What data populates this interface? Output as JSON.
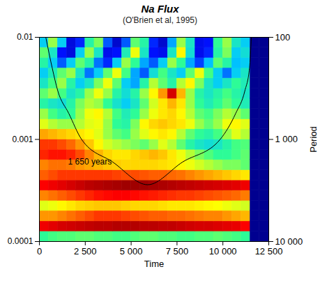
{
  "chart_data": {
    "type": "heatmap",
    "title": "Na Flux",
    "subtitle": "(O'Brien et al, 1995)",
    "x_label": "Time",
    "y2_label": "Period",
    "log": "y",
    "xlim": [
      0,
      12500
    ],
    "xticks": [
      0,
      {
        "value": 2500,
        "label": "2 500"
      },
      {
        "value": 5000,
        "label": "5 000"
      },
      {
        "value": 7500,
        "label": "7 500"
      },
      {
        "value": 10000,
        "label": "10 000"
      },
      {
        "value": 12500,
        "label": "12 500"
      }
    ],
    "ylim": [
      0.0001,
      0.01
    ],
    "yticks": [
      0.0001,
      0.001,
      0.01
    ],
    "y2lim": [
      10000,
      100
    ],
    "y2ticks": [
      100,
      {
        "value": 1000,
        "label": "1 000"
      },
      {
        "value": 10000,
        "label": "10 000"
      }
    ],
    "x_bins": [
      0,
      500,
      1000,
      1500,
      2000,
      2500,
      3000,
      3500,
      4000,
      4500,
      5000,
      5500,
      6000,
      6500,
      7000,
      7500,
      8000,
      8500,
      9000,
      9500,
      10000,
      10500,
      11000,
      11500,
      12000,
      12500
    ],
    "y_bins": [
      0.0001,
      0.000126,
      0.000158,
      0.0002,
      0.000251,
      0.000316,
      0.000398,
      0.000501,
      0.000631,
      0.000794,
      0.001,
      0.00126,
      0.00158,
      0.002,
      0.00251,
      0.00316,
      0.00398,
      0.00501,
      0.00631,
      0.00794,
      0.01
    ],
    "values": [
      [
        0.42,
        0.44,
        0.45,
        0.45,
        0.46,
        0.46,
        0.45,
        0.45,
        0.44,
        0.44,
        0.45,
        0.46,
        0.46,
        0.45,
        0.45,
        0.44,
        0.44,
        0.45,
        0.45,
        0.46,
        0.45,
        0.44,
        0.42,
        0,
        0
      ],
      [
        0.88,
        0.9,
        0.92,
        0.93,
        0.94,
        0.95,
        0.96,
        0.96,
        0.97,
        0.97,
        0.97,
        0.96,
        0.96,
        0.95,
        0.95,
        0.94,
        0.93,
        0.92,
        0.92,
        0.91,
        0.9,
        0.89,
        0.86,
        0,
        0
      ],
      [
        0.7,
        0.7,
        0.72,
        0.74,
        0.76,
        0.78,
        0.8,
        0.8,
        0.8,
        0.79,
        0.78,
        0.77,
        0.76,
        0.76,
        0.75,
        0.75,
        0.74,
        0.73,
        0.72,
        0.72,
        0.7,
        0.68,
        0.66,
        0,
        0
      ],
      [
        0.55,
        0.56,
        0.58,
        0.6,
        0.62,
        0.63,
        0.64,
        0.64,
        0.64,
        0.63,
        0.62,
        0.62,
        0.62,
        0.61,
        0.6,
        0.6,
        0.6,
        0.59,
        0.58,
        0.57,
        0.56,
        0.55,
        0.54,
        0,
        0
      ],
      [
        0.72,
        0.74,
        0.76,
        0.78,
        0.8,
        0.82,
        0.84,
        0.85,
        0.86,
        0.86,
        0.85,
        0.84,
        0.83,
        0.82,
        0.81,
        0.8,
        0.8,
        0.79,
        0.78,
        0.77,
        0.76,
        0.75,
        0.73,
        0,
        0
      ],
      [
        0.86,
        0.88,
        0.9,
        0.92,
        0.94,
        0.96,
        0.97,
        0.98,
        0.99,
        1,
        1,
        1,
        0.99,
        0.98,
        0.97,
        0.96,
        0.95,
        0.94,
        0.93,
        0.92,
        0.91,
        0.9,
        0.88,
        0,
        0
      ],
      [
        0.76,
        0.78,
        0.8,
        0.8,
        0.8,
        0.8,
        0.8,
        0.8,
        0.79,
        0.78,
        0.78,
        0.77,
        0.76,
        0.76,
        0.75,
        0.74,
        0.72,
        0.7,
        0.68,
        0.66,
        0.64,
        0.62,
        0.6,
        0,
        0
      ],
      [
        0.72,
        0.74,
        0.74,
        0.73,
        0.7,
        0.68,
        0.66,
        0.64,
        0.63,
        0.62,
        0.62,
        0.62,
        0.62,
        0.61,
        0.6,
        0.58,
        0.56,
        0.54,
        0.52,
        0.5,
        0.48,
        0.48,
        0.46,
        0,
        0
      ],
      [
        0.82,
        0.84,
        0.84,
        0.82,
        0.78,
        0.72,
        0.66,
        0.62,
        0.6,
        0.6,
        0.62,
        0.64,
        0.66,
        0.64,
        0.6,
        0.56,
        0.52,
        0.48,
        0.45,
        0.42,
        0.42,
        0.44,
        0.46,
        0,
        0
      ],
      [
        0.8,
        0.8,
        0.78,
        0.75,
        0.7,
        0.64,
        0.58,
        0.54,
        0.52,
        0.5,
        0.48,
        0.46,
        0.5,
        0.55,
        0.52,
        0.46,
        0.4,
        0.36,
        0.34,
        0.36,
        0.4,
        0.44,
        0.45,
        0,
        0
      ],
      [
        0.68,
        0.66,
        0.64,
        0.62,
        0.6,
        0.58,
        0.55,
        0.5,
        0.46,
        0.44,
        0.5,
        0.55,
        0.58,
        0.6,
        0.58,
        0.52,
        0.46,
        0.42,
        0.4,
        0.44,
        0.5,
        0.55,
        0.52,
        0,
        0
      ],
      [
        0.55,
        0.52,
        0.5,
        0.5,
        0.52,
        0.55,
        0.56,
        0.5,
        0.42,
        0.4,
        0.48,
        0.58,
        0.62,
        0.64,
        0.62,
        0.6,
        0.56,
        0.5,
        0.46,
        0.5,
        0.56,
        0.58,
        0.55,
        0,
        0
      ],
      [
        0.5,
        0.44,
        0.4,
        0.42,
        0.5,
        0.56,
        0.58,
        0.52,
        0.44,
        0.38,
        0.42,
        0.5,
        0.56,
        0.6,
        0.62,
        0.58,
        0.52,
        0.46,
        0.44,
        0.48,
        0.52,
        0.5,
        0.46,
        0,
        0
      ],
      [
        0.4,
        0.36,
        0.34,
        0.4,
        0.48,
        0.52,
        0.5,
        0.42,
        0.35,
        0.3,
        0.36,
        0.46,
        0.54,
        0.6,
        0.66,
        0.6,
        0.5,
        0.42,
        0.38,
        0.42,
        0.46,
        0.42,
        0.38,
        0,
        0
      ],
      [
        0.46,
        0.5,
        0.44,
        0.36,
        0.4,
        0.5,
        0.56,
        0.5,
        0.4,
        0.34,
        0.4,
        0.5,
        0.58,
        0.7,
        0.92,
        0.66,
        0.5,
        0.4,
        0.36,
        0.4,
        0.44,
        0.4,
        0.36,
        0,
        0
      ],
      [
        0.36,
        0.44,
        0.5,
        0.4,
        0.3,
        0.36,
        0.48,
        0.56,
        0.46,
        0.3,
        0.26,
        0.4,
        0.52,
        0.46,
        0.4,
        0.52,
        0.58,
        0.48,
        0.36,
        0.3,
        0.36,
        0.42,
        0.38,
        0,
        0
      ],
      [
        0.3,
        0.38,
        0.46,
        0.5,
        0.36,
        0.22,
        0.3,
        0.46,
        0.56,
        0.44,
        0.26,
        0.2,
        0.34,
        0.44,
        0.36,
        0.3,
        0.46,
        0.56,
        0.44,
        0.3,
        0.22,
        0.3,
        0.36,
        0,
        0
      ],
      [
        0.4,
        0.3,
        0.2,
        0.3,
        0.46,
        0.4,
        0.22,
        0.16,
        0.3,
        0.5,
        0.42,
        0.26,
        0.2,
        0.3,
        0.5,
        0.42,
        0.26,
        0.18,
        0.28,
        0.46,
        0.4,
        0.28,
        0.3,
        0,
        0
      ],
      [
        0.46,
        0.36,
        0.14,
        0.1,
        0.3,
        0.5,
        0.36,
        0.12,
        0.14,
        0.38,
        0.56,
        0.36,
        0.14,
        0.12,
        0.36,
        0.58,
        0.34,
        0.12,
        0.16,
        0.4,
        0.48,
        0.3,
        0.34,
        0,
        0
      ],
      [
        0.3,
        0.5,
        0.3,
        0.1,
        0.16,
        0.4,
        0.48,
        0.2,
        0.08,
        0.2,
        0.46,
        0.4,
        0.16,
        0.08,
        0.26,
        0.5,
        0.36,
        0.12,
        0.14,
        0.42,
        0.5,
        0.36,
        0.3,
        0,
        0
      ]
    ],
    "cone": {
      "x": [
        350,
        700,
        1000,
        1600,
        2300,
        4000,
        5900,
        7800,
        9850,
        10700,
        11200,
        11450,
        11550
      ],
      "y": [
        0.01,
        0.005,
        0.003,
        0.0018,
        0.001,
        0.0006,
        0.00036,
        0.0006,
        0.001,
        0.0018,
        0.003,
        0.005,
        0.01
      ]
    },
    "annotations": [
      {
        "text": "1 650 years",
        "x": 2750,
        "y": 0.0006
      }
    ]
  }
}
